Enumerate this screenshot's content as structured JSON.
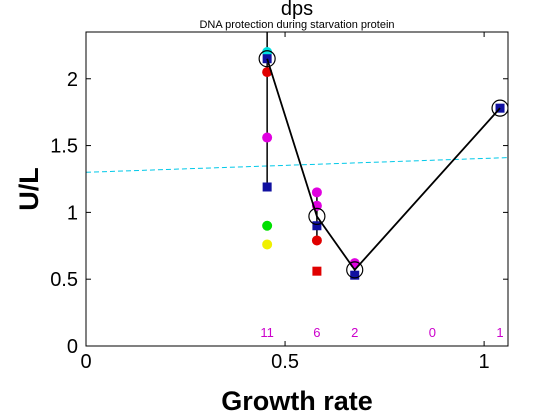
{
  "chart_data": {
    "type": "scatter",
    "title": "dps",
    "subtitle": "DNA protection during starvation protein",
    "xlabel": "Growth rate",
    "ylabel": "U/L",
    "xlim": [
      0,
      1.06
    ],
    "ylim": [
      0,
      2.35
    ],
    "grid": false,
    "x_ticks": [
      0,
      0.5,
      1
    ],
    "x_tick_labels": [
      "0",
      "0.5",
      "1"
    ],
    "y_ticks": [
      0,
      0.5,
      1,
      1.5,
      2
    ],
    "y_tick_labels": [
      "0",
      "0.5",
      "1",
      "1.5",
      "2"
    ],
    "colors": {
      "line": "#000000",
      "trend": "#00c8e8",
      "counts": "#cc00cc"
    },
    "mean_line": {
      "x": [
        0.455,
        0.58,
        0.675,
        1.04
      ],
      "y": [
        2.15,
        0.97,
        0.57,
        1.78
      ]
    },
    "trend_line": {
      "x": [
        0,
        1.06
      ],
      "y": [
        1.3,
        1.41
      ]
    },
    "range_bars": [
      {
        "x": 0.455,
        "y_min": 1.19,
        "y_max": 2.35
      },
      {
        "x": 0.58,
        "y_min": 0.79,
        "y_max": 1.15
      },
      {
        "x": 0.675,
        "y_min": 0.53,
        "y_max": 0.63
      }
    ],
    "points": [
      {
        "x": 0.455,
        "y": 2.2,
        "shape": "circle",
        "color": "#00e0e0"
      },
      {
        "x": 0.455,
        "y": 2.15,
        "shape": "square",
        "color": "#1010a0"
      },
      {
        "x": 0.455,
        "y": 2.05,
        "shape": "circle",
        "color": "#e00000"
      },
      {
        "x": 0.455,
        "y": 1.56,
        "shape": "circle",
        "color": "#e000e0"
      },
      {
        "x": 0.455,
        "y": 1.19,
        "shape": "square",
        "color": "#1010a0"
      },
      {
        "x": 0.455,
        "y": 0.9,
        "shape": "circle",
        "color": "#00e000"
      },
      {
        "x": 0.455,
        "y": 0.76,
        "shape": "circle",
        "color": "#f0f000"
      },
      {
        "x": 0.58,
        "y": 1.15,
        "shape": "circle",
        "color": "#e000e0"
      },
      {
        "x": 0.58,
        "y": 1.05,
        "shape": "circle",
        "color": "#e000e0"
      },
      {
        "x": 0.58,
        "y": 0.9,
        "shape": "square",
        "color": "#1010a0"
      },
      {
        "x": 0.58,
        "y": 0.79,
        "shape": "circle",
        "color": "#e00000"
      },
      {
        "x": 0.58,
        "y": 0.56,
        "shape": "square",
        "color": "#e00000"
      },
      {
        "x": 0.675,
        "y": 0.62,
        "shape": "circle",
        "color": "#e000e0"
      },
      {
        "x": 0.675,
        "y": 0.53,
        "shape": "square",
        "color": "#1010a0"
      },
      {
        "x": 1.04,
        "y": 1.78,
        "shape": "square",
        "color": "#1010a0"
      }
    ],
    "count_labels": [
      {
        "x": 0.455,
        "text": "11"
      },
      {
        "x": 0.58,
        "text": "6"
      },
      {
        "x": 0.675,
        "text": "2"
      },
      {
        "x": 0.87,
        "text": "0"
      },
      {
        "x": 1.04,
        "text": "1"
      }
    ]
  }
}
